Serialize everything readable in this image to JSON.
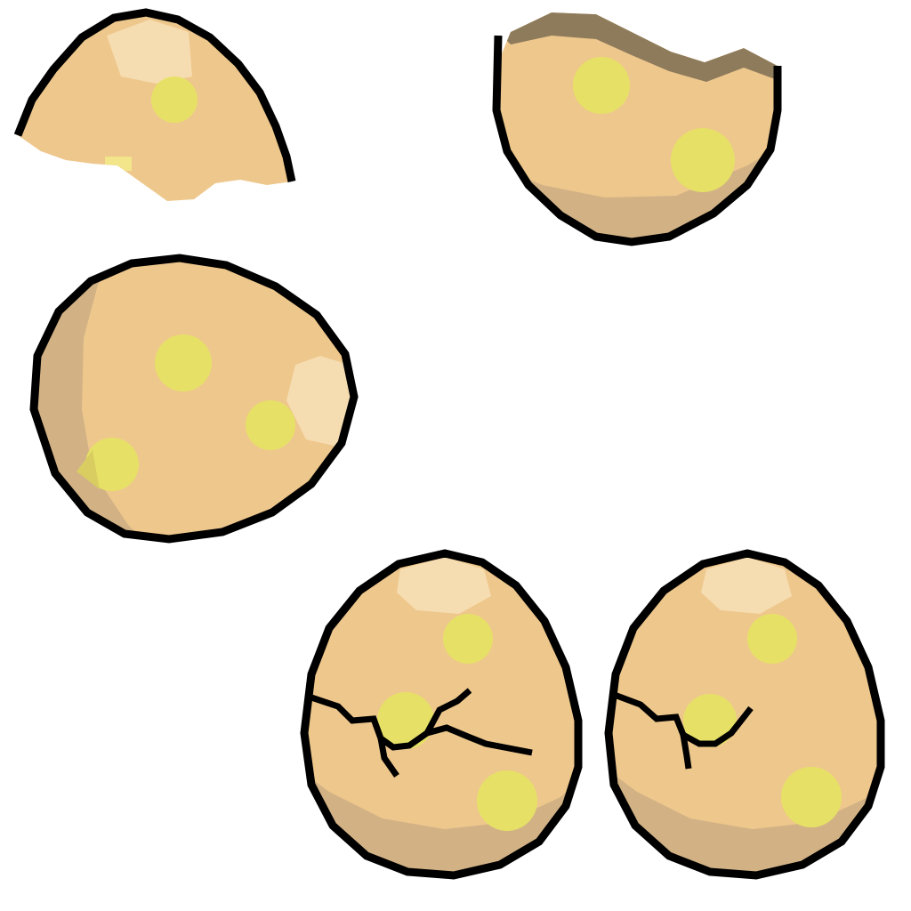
{
  "sprite_sheet": {
    "background": "#ffffff",
    "palette": {
      "outline": "#000000",
      "shell_base": "#eec78c",
      "shell_highlight": "#f6ddb1",
      "shell_shadow": "#d2b285",
      "spot": "#e6e166",
      "spot_shadow": "#d9cd62",
      "inner_rim": "#8e7b5c"
    },
    "sprites": [
      {
        "id": "shell-top-fragment",
        "description_icon": "egg-shell-top-icon"
      },
      {
        "id": "shell-bottom-fragment",
        "description_icon": "egg-shell-bottom-icon"
      },
      {
        "id": "whole-egg-rotated",
        "description_icon": "egg-icon"
      },
      {
        "id": "cracked-egg-large",
        "description_icon": "cracked-egg-icon"
      },
      {
        "id": "cracked-egg-small",
        "description_icon": "cracked-egg-icon"
      }
    ]
  }
}
